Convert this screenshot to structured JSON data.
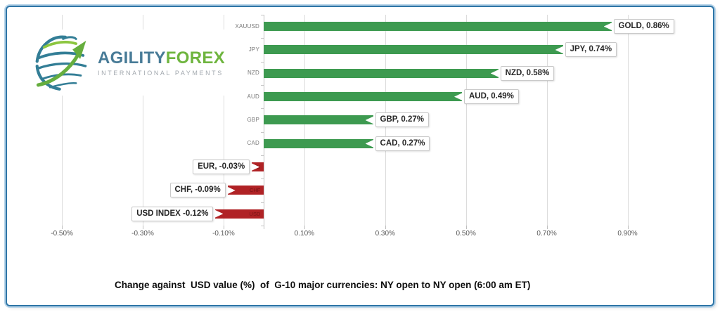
{
  "logo": {
    "name_part1": "AGILITY",
    "name_part2": "FOREX",
    "tagline": "INTERNATIONAL PAYMENTS"
  },
  "caption": "Change against  USD value (%)  of  G-10 major currencies: NY open to NY open (6:00 am ET)",
  "colors": {
    "positive_bar": "#3D9A50",
    "negative_bar": "#B02225",
    "frame_border": "#2E75A6",
    "gridline": "#DCDCDC",
    "axis_line": "#C0C0C0",
    "data_label_text": "#262626",
    "category_label_text": "#787878",
    "logo_blue": "#487B97",
    "logo_green": "#6FB53F"
  },
  "chart_data": {
    "type": "bar",
    "orientation": "horizontal",
    "title": "",
    "xlabel": "",
    "ylabel": "",
    "categories": [
      "XAUUSD",
      "JPY",
      "NZD",
      "AUD",
      "GBP",
      "CAD",
      "EUR",
      "CHF",
      "USD"
    ],
    "values": [
      0.86,
      0.74,
      0.58,
      0.49,
      0.27,
      0.27,
      -0.03,
      -0.09,
      -0.12
    ],
    "data_labels": [
      "GOLD, 0.86%",
      "JPY, 0.74%",
      "NZD, 0.58%",
      "AUD, 0.49%",
      "GBP, 0.27%",
      "CAD, 0.27%",
      "EUR, -0.03%",
      "CHF, -0.09%",
      "USD INDEX -0.12%"
    ],
    "x_ticks": [
      {
        "label": "-0.50%",
        "value": -0.5
      },
      {
        "label": "-0.30%",
        "value": -0.3
      },
      {
        "label": "-0.10%",
        "value": -0.1
      },
      {
        "label": "0.10%",
        "value": 0.1
      },
      {
        "label": "0.30%",
        "value": 0.3
      },
      {
        "label": "0.50%",
        "value": 0.5
      },
      {
        "label": "0.70%",
        "value": 0.7
      },
      {
        "label": "0.90%",
        "value": 0.9
      }
    ],
    "xlim": [
      -0.56,
      1.04
    ],
    "grid": true,
    "legend": false
  }
}
